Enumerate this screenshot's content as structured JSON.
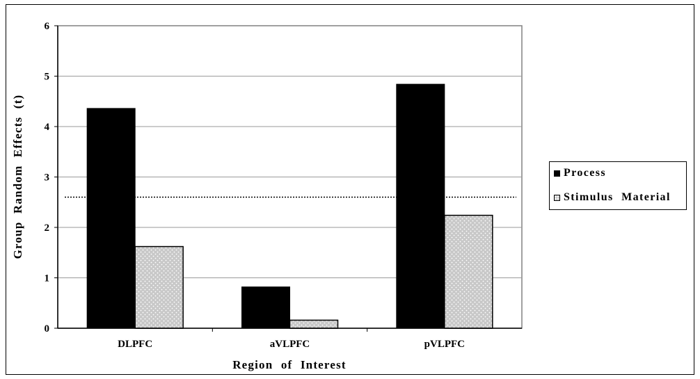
{
  "chart_data": {
    "type": "bar",
    "title": "",
    "xlabel": "Region of Interest",
    "ylabel": "Group Random Effects (t)",
    "categories": [
      "DLPFC",
      "aVLPFC",
      "pVLPFC"
    ],
    "series": [
      {
        "name": "Process",
        "values": [
          4.36,
          0.82,
          4.84
        ],
        "color": "#000000"
      },
      {
        "name": "Stimulus Material",
        "values": [
          1.62,
          0.16,
          2.24
        ],
        "color": "#c8c8c8",
        "pattern": "dotted"
      }
    ],
    "ylim": [
      0,
      6
    ],
    "yticks": [
      0,
      1,
      2,
      3,
      4,
      5,
      6
    ],
    "grid": true,
    "reference_line": {
      "y": 2.6,
      "style": "dotted"
    },
    "legend": "right"
  },
  "legend": {
    "items": [
      "Process",
      "Stimulus Material"
    ]
  }
}
